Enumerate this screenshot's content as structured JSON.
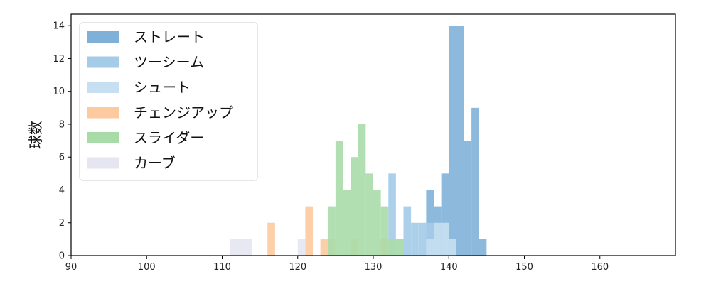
{
  "chart_data": {
    "type": "bar",
    "ylabel": "球数",
    "xlabel": "",
    "xlim": [
      90,
      170
    ],
    "ylim": [
      0,
      14.7
    ],
    "xticks": [
      90,
      100,
      110,
      120,
      130,
      140,
      150,
      160
    ],
    "yticks": [
      0,
      2,
      4,
      6,
      8,
      10,
      12,
      14
    ],
    "legend_placement": "upper-left",
    "series": [
      {
        "name": "ストレート",
        "color": "#7fb1d8",
        "bins": [
          [
            137,
            138,
            4
          ],
          [
            138,
            139,
            3
          ],
          [
            139,
            140,
            5
          ],
          [
            140,
            141,
            14
          ],
          [
            141,
            142,
            14
          ],
          [
            142,
            143,
            7
          ],
          [
            143,
            144,
            9
          ],
          [
            144,
            145,
            1
          ]
        ]
      },
      {
        "name": "ツーシーム",
        "color": "#a4cbe8",
        "bins": [
          [
            132,
            133,
            5
          ],
          [
            134,
            135,
            3
          ],
          [
            135,
            136,
            2
          ],
          [
            136,
            137,
            2
          ],
          [
            137,
            138,
            2
          ],
          [
            138,
            139,
            1
          ],
          [
            139,
            140,
            2
          ]
        ]
      },
      {
        "name": "シュート",
        "color": "#c6dff1",
        "bins": [
          [
            131,
            132,
            1
          ],
          [
            132,
            133,
            1
          ],
          [
            133,
            134,
            1
          ],
          [
            137,
            138,
            1
          ],
          [
            138,
            139,
            2
          ],
          [
            139,
            140,
            2
          ],
          [
            140,
            141,
            1
          ]
        ]
      },
      {
        "name": "チェンジアップ",
        "color": "#fdcaa0",
        "bins": [
          [
            116,
            117,
            2
          ],
          [
            121,
            122,
            3
          ],
          [
            123,
            124,
            1
          ],
          [
            124,
            125,
            1
          ],
          [
            127,
            128,
            1
          ],
          [
            131,
            132,
            1
          ]
        ]
      },
      {
        "name": "スライダー",
        "color": "#a8dba8",
        "bins": [
          [
            124,
            125,
            3
          ],
          [
            125,
            126,
            7
          ],
          [
            126,
            127,
            4
          ],
          [
            127,
            128,
            6
          ],
          [
            128,
            129,
            8
          ],
          [
            129,
            130,
            5
          ],
          [
            130,
            131,
            4
          ],
          [
            131,
            132,
            3
          ],
          [
            132,
            133,
            1
          ],
          [
            133,
            134,
            1
          ]
        ]
      },
      {
        "name": "カーブ",
        "color": "#e6e6f2",
        "bins": [
          [
            111,
            112,
            1
          ],
          [
            112,
            113,
            1
          ],
          [
            113,
            114,
            1
          ],
          [
            120,
            121,
            1
          ]
        ]
      }
    ]
  }
}
